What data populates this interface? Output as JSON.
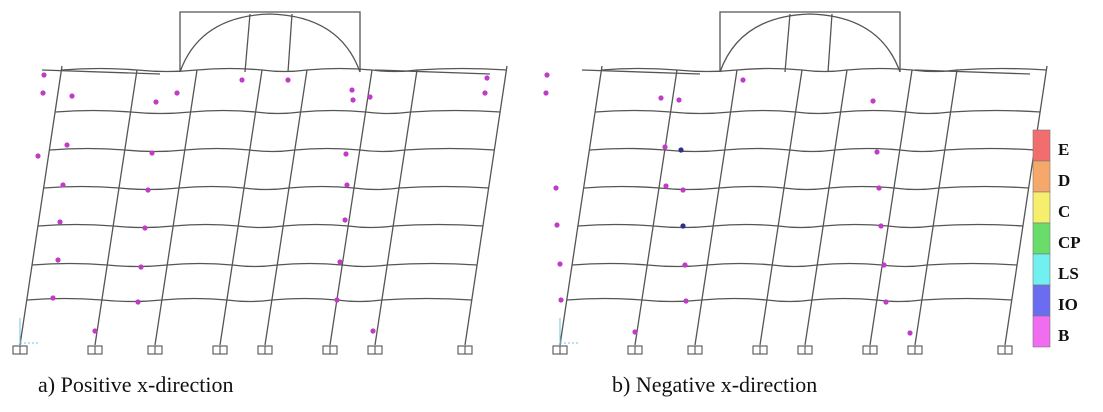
{
  "captions": {
    "left": "a) Positive x-direction",
    "right": "b) Negative x-direction"
  },
  "legend": [
    {
      "label": "E",
      "color": "#f26d6d"
    },
    {
      "label": "D",
      "color": "#f6a86b"
    },
    {
      "label": "C",
      "color": "#f6ef6e"
    },
    {
      "label": "CP",
      "color": "#69dd69"
    },
    {
      "label": "LS",
      "color": "#72f0ef"
    },
    {
      "label": "IO",
      "color": "#6a6df0"
    },
    {
      "label": "B",
      "color": "#f06cf0"
    }
  ],
  "hinge_colors": {
    "B": "#c03cc8",
    "IO": "#2e2e8c"
  }
}
